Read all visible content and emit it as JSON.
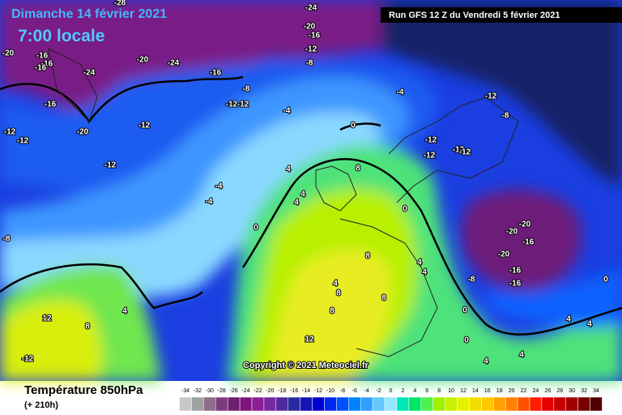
{
  "header": {
    "date": "Dimanche 14 février 2021",
    "time": "7:00 locale",
    "run": "Run GFS 12 Z du Vendredi 5 février 2021"
  },
  "copyright": "Copyright © 2021 Meteociel.fr",
  "footer": {
    "title": "Température 850hPa",
    "lead": "(+ 210h)"
  },
  "scale": {
    "values": [
      -34,
      -32,
      -30,
      -28,
      -26,
      -24,
      -22,
      -20,
      -18,
      -16,
      -14,
      -12,
      -10,
      -8,
      -6,
      -4,
      -2,
      0,
      2,
      4,
      6,
      8,
      10,
      12,
      14,
      16,
      18,
      20,
      22,
      24,
      26,
      28,
      30,
      32,
      34
    ],
    "colors": [
      "#c8c8c8",
      "#a0a0a0",
      "#8c6e8c",
      "#7c3c7c",
      "#6e1e6e",
      "#80147c",
      "#8c1e96",
      "#7828a0",
      "#5028a0",
      "#2828a0",
      "#1414b4",
      "#0000d2",
      "#0028f0",
      "#0050ff",
      "#0082ff",
      "#30a0ff",
      "#64c8ff",
      "#96e6ff",
      "#00e6b4",
      "#00e664",
      "#50f050",
      "#a0f000",
      "#c8f000",
      "#e6f000",
      "#f0dc00",
      "#ffc800",
      "#ffa000",
      "#ff8200",
      "#ff5000",
      "#ff1e00",
      "#e60000",
      "#c80000",
      "#a00000",
      "#780000",
      "#500000"
    ]
  },
  "contour_labels": [
    -28,
    -24,
    -20,
    -16,
    -12,
    -8,
    -20,
    -16,
    -16,
    -16,
    -20,
    -24,
    -24,
    -16,
    -8,
    -4,
    -12,
    -4,
    -12,
    -12,
    -16,
    -8,
    -12,
    -20,
    -12,
    -12,
    0,
    -12,
    -12,
    -12,
    -12,
    -12,
    4,
    8,
    -4,
    -4,
    4,
    4,
    0,
    -20,
    -20,
    -16,
    -8,
    0,
    -20,
    -16,
    -16,
    8,
    4,
    4,
    -8,
    0,
    4,
    8,
    8,
    4,
    12,
    8,
    0,
    4,
    4,
    8,
    12,
    0,
    4,
    4,
    -12
  ]
}
